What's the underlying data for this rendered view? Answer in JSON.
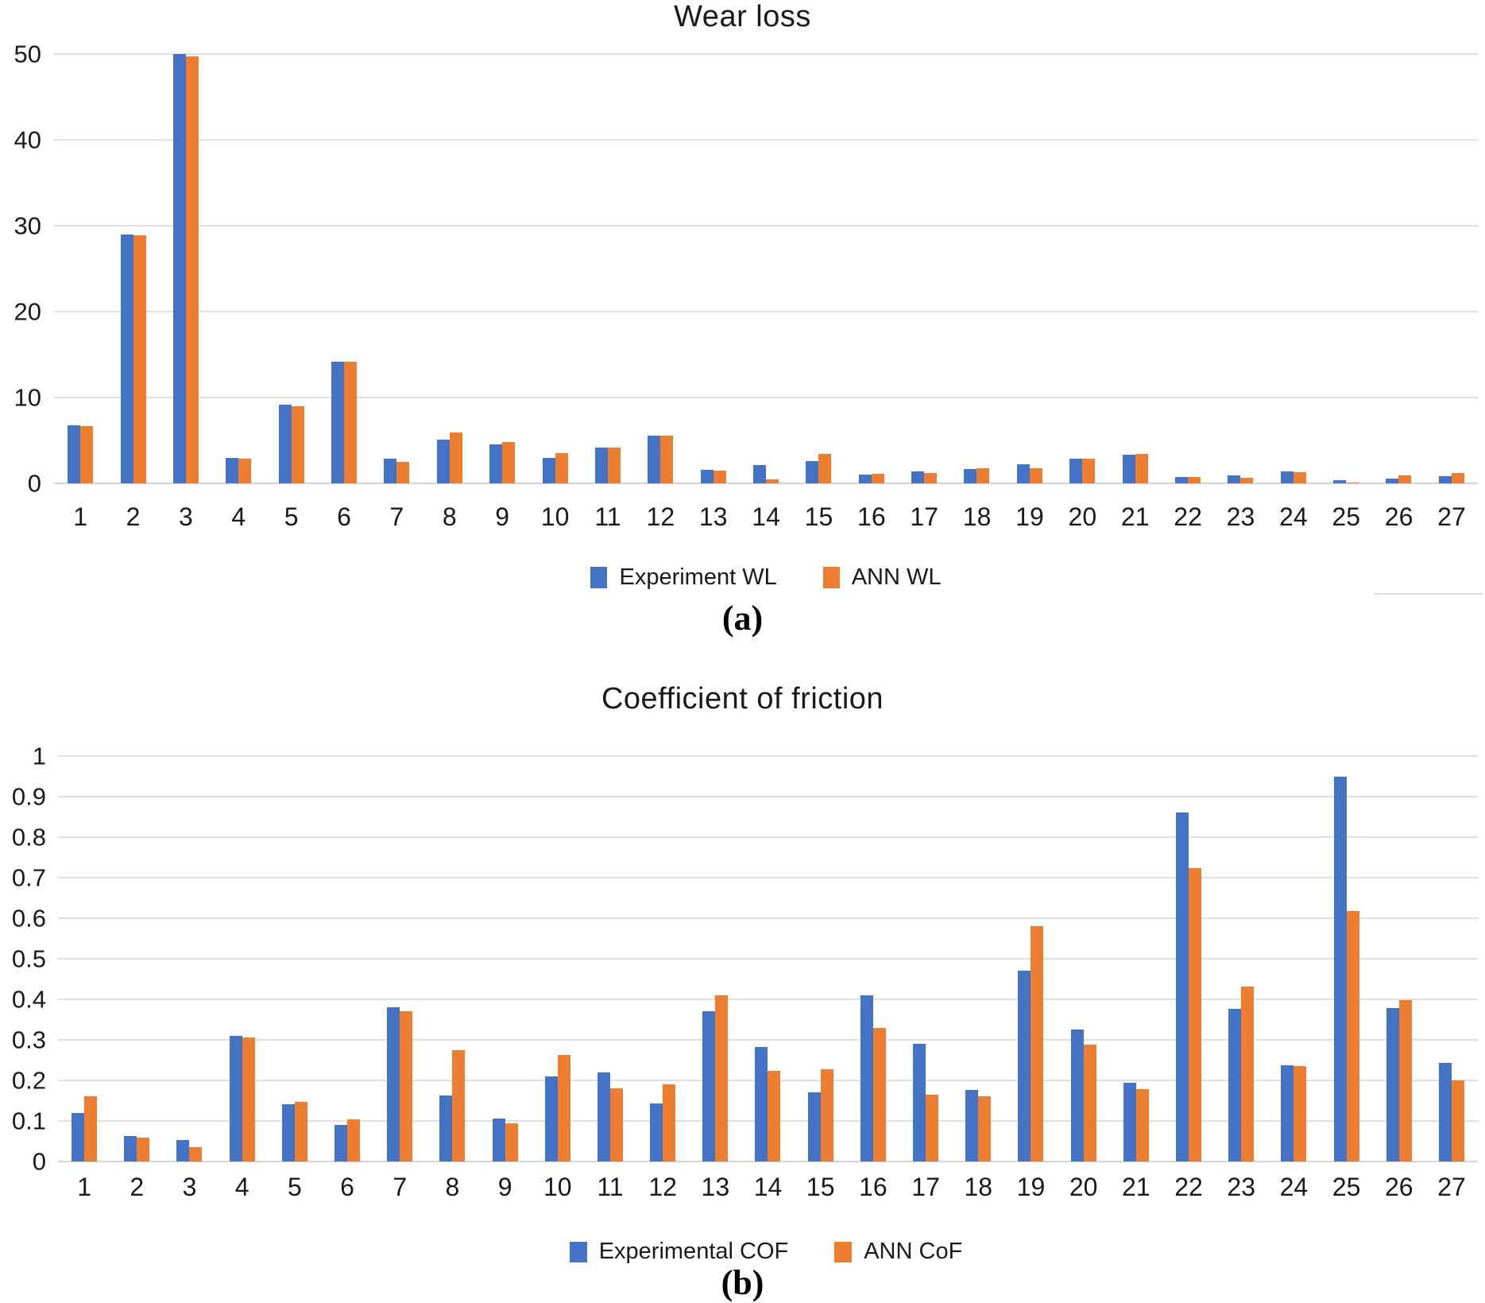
{
  "chart_data": [
    {
      "type": "bar",
      "title": "Wear loss",
      "panel_label": "(a)",
      "categories": [
        "1",
        "2",
        "3",
        "4",
        "5",
        "6",
        "7",
        "8",
        "9",
        "10",
        "11",
        "12",
        "13",
        "14",
        "15",
        "16",
        "17",
        "18",
        "19",
        "20",
        "21",
        "22",
        "23",
        "24",
        "25",
        "26",
        "27"
      ],
      "series": [
        {
          "name": "Experiment WL",
          "color": "#4472C4",
          "values": [
            6.8,
            29,
            50,
            3.0,
            9.2,
            14.2,
            2.9,
            5.1,
            4.5,
            3.0,
            4.2,
            5.6,
            1.6,
            2.1,
            2.6,
            1.0,
            1.35,
            1.7,
            2.2,
            2.9,
            3.3,
            0.7,
            0.95,
            1.4,
            0.4,
            0.6,
            0.8
          ]
        },
        {
          "name": "ANN WL",
          "color": "#ED7D31",
          "values": [
            6.7,
            28.9,
            49.7,
            2.9,
            9.0,
            14.2,
            2.5,
            5.9,
            4.8,
            3.5,
            4.2,
            5.6,
            1.5,
            0.5,
            3.4,
            1.1,
            1.25,
            1.75,
            1.75,
            2.9,
            3.4,
            0.75,
            0.65,
            1.3,
            0.1,
            0.9,
            1.2
          ]
        }
      ],
      "xlabel": "",
      "ylabel": "",
      "ylim": [
        0,
        50
      ],
      "yticks": [
        0,
        10,
        20,
        30,
        40,
        50
      ],
      "ytick_labels": [
        "0",
        "10",
        "20",
        "30",
        "40",
        "50"
      ],
      "grid": true,
      "legend_position": "bottom"
    },
    {
      "type": "bar",
      "title": "Coefficient of friction",
      "panel_label": "(b)",
      "categories": [
        "1",
        "2",
        "3",
        "4",
        "5",
        "6",
        "7",
        "8",
        "9",
        "10",
        "11",
        "12",
        "13",
        "14",
        "15",
        "16",
        "17",
        "18",
        "19",
        "20",
        "21",
        "22",
        "23",
        "24",
        "25",
        "26",
        "27"
      ],
      "series": [
        {
          "name": "Experimental COF",
          "color": "#4472C4",
          "values": [
            0.12,
            0.062,
            0.053,
            0.31,
            0.142,
            0.09,
            0.38,
            0.162,
            0.105,
            0.21,
            0.22,
            0.143,
            0.37,
            0.283,
            0.17,
            0.41,
            0.29,
            0.176,
            0.47,
            0.326,
            0.194,
            0.86,
            0.376,
            0.238,
            0.95,
            0.378,
            0.243
          ]
        },
        {
          "name": "ANN CoF",
          "color": "#ED7D31",
          "values": [
            0.16,
            0.058,
            0.036,
            0.305,
            0.147,
            0.103,
            0.37,
            0.274,
            0.095,
            0.263,
            0.18,
            0.19,
            0.41,
            0.224,
            0.227,
            0.33,
            0.165,
            0.16,
            0.58,
            0.288,
            0.178,
            0.723,
            0.432,
            0.235,
            0.617,
            0.398,
            0.2
          ]
        }
      ],
      "xlabel": "",
      "ylabel": "",
      "ylim": [
        0,
        1
      ],
      "yticks": [
        0,
        0.1,
        0.2,
        0.3,
        0.4,
        0.5,
        0.6,
        0.7,
        0.8,
        0.9,
        1
      ],
      "ytick_labels": [
        "0",
        "0.1",
        "0.2",
        "0.3",
        "0.4",
        "0.5",
        "0.6",
        "0.7",
        "0.8",
        "0.9",
        "1"
      ],
      "grid": true,
      "legend_position": "bottom"
    }
  ],
  "colors": {
    "experiment_blue": "#4472C4",
    "ann_orange": "#ED7D31",
    "gridline_gray": "#e0e0e0",
    "axis_gray": "#d4d4d4"
  }
}
